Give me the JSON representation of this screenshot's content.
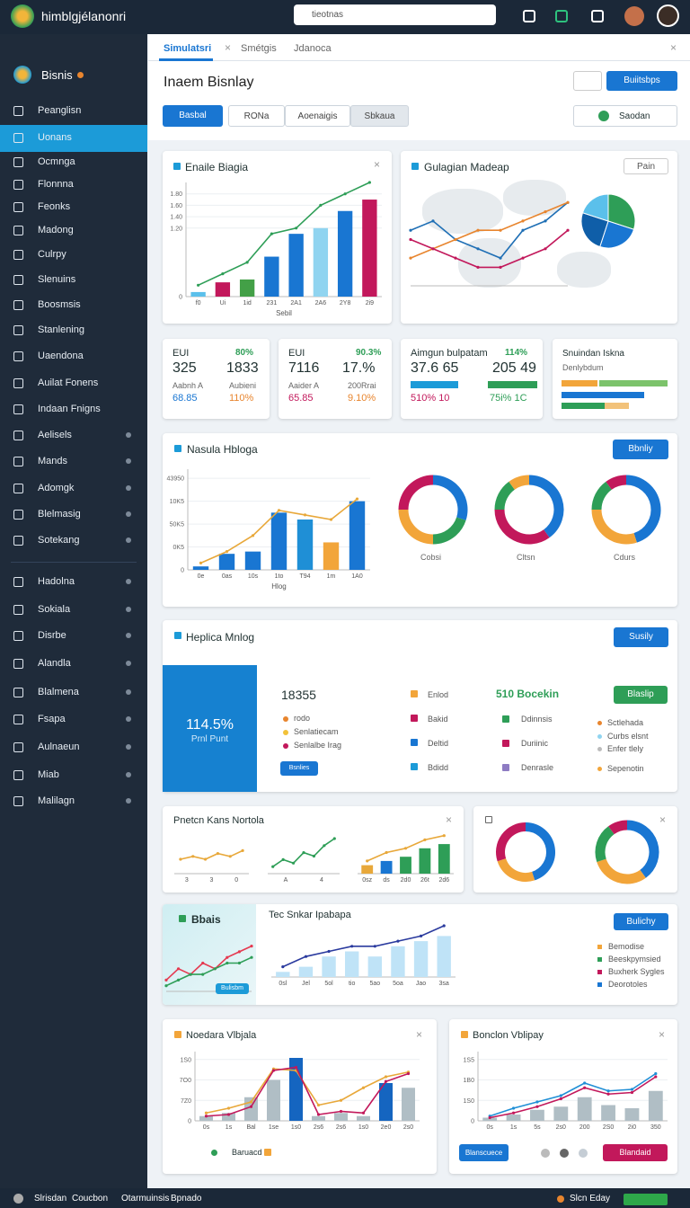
{
  "topbar": {
    "brand": "himblgjélanonri",
    "search": "tieotnas"
  },
  "sidebar": {
    "title": "Bisnis",
    "active": 1,
    "items": [
      "Peanglisn",
      "Uonans",
      "Ocmnga",
      "Flonnna",
      "Feonks",
      "Madong",
      "Culrpy",
      "Slenuins",
      "Boosmsis",
      "Stanlening",
      "Uaendona",
      "Auilat Fonens",
      "Indaan Fnigns",
      "Aelisels",
      "Mands",
      "Adomgk",
      "Blelmasig",
      "Sotekang",
      "Hadolna",
      "Sokiala",
      "Disrbe",
      "Alandla",
      "Blalmena",
      "Fsapa",
      "Aulnaeun",
      "Miab",
      "Malilagn"
    ]
  },
  "tabs": [
    "Simulatsri",
    "Smétgis",
    "Jdanoca"
  ],
  "header": {
    "title": "Inaem Bisnlay",
    "action": "Buiitsbps",
    "segments": [
      "Basbal",
      "RONa",
      "Aoenaigis",
      "Sbkaua"
    ],
    "dropdown": "Saodan"
  },
  "card1": {
    "title": "Enaile Biagia",
    "chart": {
      "type": "combo",
      "ylim": [
        0,
        2
      ],
      "yticks": [
        0,
        {
          "value": 1.2,
          "label": "1.20"
        },
        {
          "value": 1.4,
          "label": "1.40"
        },
        {
          "value": 1.6,
          "label": "1.60"
        },
        {
          "value": 1.8,
          "label": "1.80"
        }
      ],
      "categories": [
        "f0",
        "Ui",
        "1id",
        "231",
        "2A1",
        "2A6",
        "2Y8",
        "2i9"
      ],
      "xlabel": "Sebil",
      "bars": {
        "values": [
          0.08,
          0.25,
          0.3,
          0.7,
          1.1,
          1.2,
          1.5,
          1.7
        ],
        "colors": [
          "#5bc0eb",
          "#c2185b",
          "#43a047",
          "#1976d2",
          "#1976d2",
          "#90d4f0",
          "#1976d2",
          "#c2185b"
        ]
      },
      "lines": [
        {
          "color": "#2e9e57",
          "values": [
            0.2,
            0.4,
            0.6,
            1.1,
            1.2,
            1.6,
            1.8,
            2.0
          ]
        }
      ]
    }
  },
  "card2": {
    "title": "Gulagian Madeap",
    "button": "Pain",
    "chart": {
      "type": "line",
      "ylim": [
        0,
        10
      ],
      "lines": [
        {
          "color": "#1f6fb5",
          "values": [
            6,
            7,
            5,
            4,
            3,
            6,
            7,
            9
          ]
        },
        {
          "color": "#e8852e",
          "values": [
            3,
            4,
            5,
            6,
            6,
            7,
            8,
            9
          ]
        },
        {
          "color": "#c2185b",
          "values": [
            5,
            4,
            3,
            2,
            2,
            3,
            4,
            6
          ]
        }
      ]
    },
    "pie": {
      "values": [
        30,
        25,
        25,
        20
      ],
      "colors": [
        "#2e9e57",
        "#1976d2",
        "#0f5ea8",
        "#5bc0eb"
      ]
    }
  },
  "stats": [
    {
      "label": "EUI",
      "change": "80%",
      "values": [
        "325",
        "1833"
      ],
      "sub": [
        "Aabnh A",
        "Aubieni"
      ],
      "foot": [
        "68.85",
        "110%"
      ]
    },
    {
      "label": "EUI",
      "change": "90.3%",
      "values": [
        "7116",
        "17.%"
      ],
      "sub": [
        "Aaider A",
        "200Rrai"
      ],
      "foot": [
        "65.85",
        "9.10%"
      ]
    },
    {
      "label": "Aimgun bulpatam",
      "change": "114%",
      "values": [
        "37.6 65",
        "205 49"
      ],
      "foot": [
        "510% 10",
        "75i% 1C"
      ]
    },
    {
      "label": "Snuindan Iskna",
      "sub": [
        "Denlybdum"
      ]
    }
  ],
  "card3": {
    "title": "Nasula Hbloga",
    "button": "Bbnliy",
    "chart": {
      "type": "combo",
      "ylim": [
        0,
        4.4
      ],
      "yticks": [
        0,
        {
          "value": 1,
          "label": "0K5"
        },
        {
          "value": 2,
          "label": "50K5"
        },
        {
          "value": 3,
          "label": "10K5"
        },
        {
          "value": 4,
          "label": "43950"
        }
      ],
      "categories": [
        "0e",
        "0as",
        "10s",
        "1to",
        "T94",
        "1m",
        "1A0"
      ],
      "xlabel": "Hlog",
      "bars": {
        "values": [
          0.15,
          0.7,
          0.8,
          2.5,
          2.2,
          1.2,
          3.0
        ],
        "colors": [
          "#1976d2",
          "#1976d2",
          "#1976d2",
          "#1976d2",
          "#1f8fd6",
          "#f2a53a",
          "#1976d2"
        ]
      },
      "lines": [
        {
          "color": "#e8a83a",
          "values": [
            0.3,
            0.8,
            1.5,
            2.6,
            2.4,
            2.2,
            3.1
          ]
        }
      ]
    },
    "donuts": [
      {
        "label": "Cobsi",
        "values": [
          30,
          20,
          25,
          25
        ],
        "colors": [
          "#1976d2",
          "#2e9e57",
          "#f2a53a",
          "#c2185b"
        ]
      },
      {
        "label": "Cltsn",
        "values": [
          40,
          35,
          15,
          10
        ],
        "colors": [
          "#1976d2",
          "#c2185b",
          "#2e9e57",
          "#f2a53a"
        ]
      },
      {
        "label": "Cdurs",
        "values": [
          45,
          30,
          15,
          10
        ],
        "colors": [
          "#1976d2",
          "#f2a53a",
          "#2e9e57",
          "#c2185b"
        ]
      }
    ]
  },
  "card4": {
    "title": "Heplica Mnlog",
    "button": "Susily",
    "panel": {
      "value": "114.5%",
      "label": "Prnl Punt"
    },
    "total": "18355",
    "legend": [
      "rodo",
      "Senlatiecam",
      "Senlalbe Irag"
    ],
    "cta": "Bsnlies",
    "col1": [
      "Enlod",
      "Bakid",
      "Deltid",
      "Bdidd"
    ],
    "highlight": "510 Bocekin",
    "col2": [
      "Ddinnsis",
      "Duriinic",
      "Denrasle"
    ],
    "button2": "Blaslip",
    "col3": [
      "Sctlehada",
      "Curbs elsnt",
      "Enfer tlely",
      "Sepenotin"
    ]
  },
  "card5": {
    "title": "Pnetcn Kans Nortola",
    "charts": [
      {
        "type": "line",
        "ylim": [
          0,
          10
        ],
        "categories": [
          "3",
          "3",
          "0"
        ],
        "lines": [
          {
            "color": "#e8a83a",
            "values": [
              5,
              6,
              5,
              7,
              6,
              8
            ]
          }
        ]
      },
      {
        "type": "line",
        "ylim": [
          0,
          10
        ],
        "categories": [
          "A",
          "4"
        ],
        "lines": [
          {
            "color": "#2e9e57",
            "values": [
              2,
              4,
              3,
              6,
              5,
              8,
              10
            ]
          }
        ]
      },
      {
        "type": "combo",
        "ylim": [
          0,
          10
        ],
        "categories": [
          "0sz",
          "ds",
          "2d0",
          "26t",
          "2d6"
        ],
        "bars": {
          "values": [
            2,
            3,
            4,
            6,
            7
          ],
          "colors": [
            "#e8a83a",
            "#1976d2",
            "#2e9e57",
            "#2e9e57",
            "#2e9e57"
          ]
        },
        "lines": [
          {
            "color": "#e8a83a",
            "values": [
              3,
              5,
              6,
              8,
              9
            ]
          }
        ]
      }
    ]
  },
  "card6": {
    "donuts": [
      {
        "values": [
          45,
          25,
          30
        ],
        "colors": [
          "#1976d2",
          "#f2a53a",
          "#c2185b"
        ]
      },
      {
        "values": [
          40,
          30,
          20,
          10
        ],
        "colors": [
          "#1976d2",
          "#f2a53a",
          "#2e9e57",
          "#c2185b"
        ]
      }
    ]
  },
  "card7": {
    "title": "Bbais",
    "badge": "Bulisbm",
    "chart_title": "Tec Snkar Ipabapa",
    "button": "Bulichy",
    "legend": [
      "Bemodise",
      "Beeskpymsied",
      "Buxherk Sygles",
      "Deorotoles"
    ],
    "mini": {
      "type": "line",
      "ylim": [
        0,
        10
      ],
      "lines": [
        {
          "color": "#e53950",
          "values": [
            2,
            4,
            3,
            5,
            4,
            6,
            7,
            8
          ]
        },
        {
          "color": "#2e9e57",
          "values": [
            1,
            2,
            3,
            3,
            4,
            5,
            5,
            6
          ]
        }
      ]
    },
    "chart": {
      "type": "combo",
      "ylim": [
        0,
        10
      ],
      "categories": [
        "0sl",
        "Jel",
        "5ol",
        "tio",
        "5ao",
        "5oa",
        "Jao",
        "3sa"
      ],
      "bars": {
        "values": [
          1,
          2,
          4,
          5,
          4,
          6,
          7,
          8
        ],
        "colors": [
          "#bfe3f7",
          "#bfe3f7",
          "#bfe3f7",
          "#bfe3f7",
          "#bfe3f7",
          "#bfe3f7",
          "#bfe3f7",
          "#bfe3f7"
        ]
      },
      "lines": [
        {
          "color": "#2a3a9e",
          "values": [
            2,
            4,
            5,
            6,
            6,
            7,
            8,
            10
          ]
        }
      ]
    }
  },
  "card8": {
    "title": "Noedara Vlbjala",
    "legend": "Baruacd",
    "chart": {
      "type": "combo",
      "ylim": [
        0,
        4.4
      ],
      "yticks": [
        0,
        {
          "value": 1.3,
          "label": "7Z0"
        },
        {
          "value": 2.6,
          "label": "7O0"
        },
        {
          "value": 3.9,
          "label": "1S0"
        }
      ],
      "categories": [
        "0s",
        "1s",
        "Bal",
        "1se",
        "1s0",
        "2s6",
        "2s6",
        "1s0",
        "2e0",
        "2s0"
      ],
      "bars": {
        "values": [
          0.3,
          0.5,
          1.5,
          2.6,
          4.0,
          0.3,
          0.5,
          0.3,
          2.4,
          2.1
        ],
        "colors": [
          "#b0bec5",
          "#b0bec5",
          "#b0bec5",
          "#b0bec5",
          "#1565c0",
          "#b0bec5",
          "#b0bec5",
          "#b0bec5",
          "#1565c0",
          "#b0bec5"
        ]
      },
      "lines": [
        {
          "color": "#e8a83a",
          "values": [
            0.5,
            0.8,
            1.2,
            3.3,
            3.2,
            1.0,
            1.3,
            2.1,
            2.8,
            3.1
          ]
        },
        {
          "color": "#c2185b",
          "values": [
            0.3,
            0.4,
            0.9,
            3.2,
            3.4,
            0.4,
            0.6,
            0.5,
            2.5,
            3.0
          ]
        }
      ]
    }
  },
  "card9": {
    "title": "Bonclon Vblipay",
    "buttons": [
      "Blanscuece",
      "Blandaid"
    ],
    "chart": {
      "type": "combo",
      "ylim": [
        0,
        4.4
      ],
      "yticks": [
        0,
        {
          "value": 1.3,
          "label": "1S0"
        },
        {
          "value": 2.6,
          "label": "1B0"
        },
        {
          "value": 3.9,
          "label": "1S5"
        }
      ],
      "categories": [
        "0s",
        "1s",
        "5s",
        "2s0",
        "200",
        "2S0",
        "2i0",
        "350"
      ],
      "bars": {
        "values": [
          0.2,
          0.4,
          0.7,
          0.9,
          1.5,
          1.0,
          0.8,
          1.9
        ],
        "colors": [
          "#b0bec5",
          "#b0bec5",
          "#b0bec5",
          "#b0bec5",
          "#b0bec5",
          "#b0bec5",
          "#b0bec5",
          "#b0bec5"
        ]
      },
      "lines": [
        {
          "color": "#1f8fd6",
          "values": [
            0.3,
            0.8,
            1.2,
            1.6,
            2.4,
            1.9,
            2.0,
            3.0
          ]
        },
        {
          "color": "#c2185b",
          "values": [
            0.2,
            0.5,
            0.9,
            1.4,
            2.1,
            1.7,
            1.8,
            2.8
          ]
        }
      ]
    }
  },
  "footer": {
    "links": [
      "Slrisdan",
      "Coucbon",
      "Otarmuinsis",
      "Bpnado"
    ],
    "status": "Slcn Eday"
  }
}
